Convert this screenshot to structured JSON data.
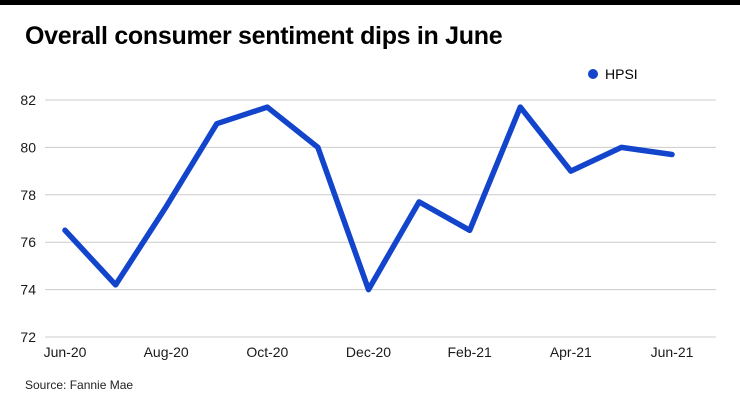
{
  "title": "Overall consumer sentiment dips in June",
  "source": "Source: Fannie Mae",
  "colors": {
    "line": "#1245cb",
    "gridline": "#cccccc",
    "axis_text": "#1a1a1a",
    "top_bar": "#000000"
  },
  "chart_data": {
    "type": "line",
    "title": "Overall consumer sentiment dips in June",
    "x": [
      "Jun-20",
      "Jul-20",
      "Aug-20",
      "Sep-20",
      "Oct-20",
      "Nov-20",
      "Dec-20",
      "Jan-21",
      "Feb-21",
      "Mar-21",
      "Apr-21",
      "May-21",
      "Jun-21"
    ],
    "series": [
      {
        "name": "HPSI",
        "values": [
          76.5,
          74.2,
          77.5,
          81.0,
          81.7,
          80.0,
          74.0,
          77.7,
          76.5,
          81.7,
          79.0,
          80.0,
          79.7
        ]
      }
    ],
    "x_tick_labels": [
      "Jun-20",
      "Aug-20",
      "Oct-20",
      "Dec-20",
      "Feb-21",
      "Apr-21",
      "Jun-21"
    ],
    "y_ticks": [
      72,
      74,
      76,
      78,
      80,
      82
    ],
    "ylim": [
      72,
      83
    ],
    "xlabel": "",
    "ylabel": "",
    "grid": "horizontal",
    "legend_position": "top-right",
    "source": "Source: Fannie Mae"
  }
}
